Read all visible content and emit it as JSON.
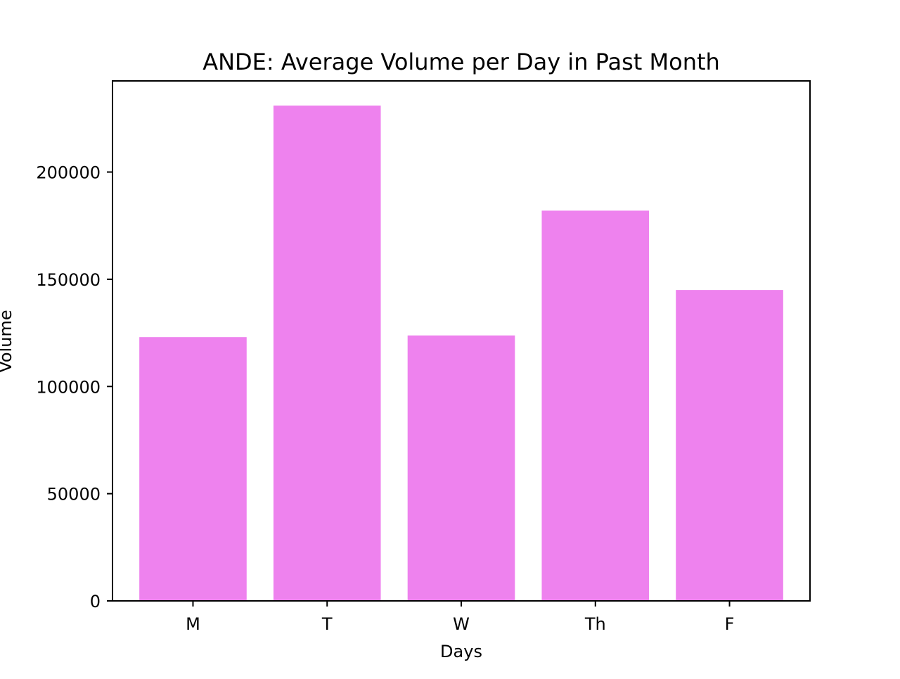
{
  "chart_data": {
    "type": "bar",
    "title": "ANDE: Average Volume per Day in Past Month",
    "xlabel": "Days",
    "ylabel": "Volume",
    "categories": [
      "M",
      "T",
      "W",
      "Th",
      "F"
    ],
    "values": [
      123000,
      231000,
      123800,
      182000,
      145000
    ],
    "ylim": [
      0,
      242500
    ],
    "yticks": [
      0,
      50000,
      100000,
      150000,
      200000
    ],
    "ytick_labels": [
      "0",
      "50000",
      "100000",
      "150000",
      "200000"
    ],
    "bar_color": "#ee82ee",
    "grid": false,
    "legend": "none"
  }
}
